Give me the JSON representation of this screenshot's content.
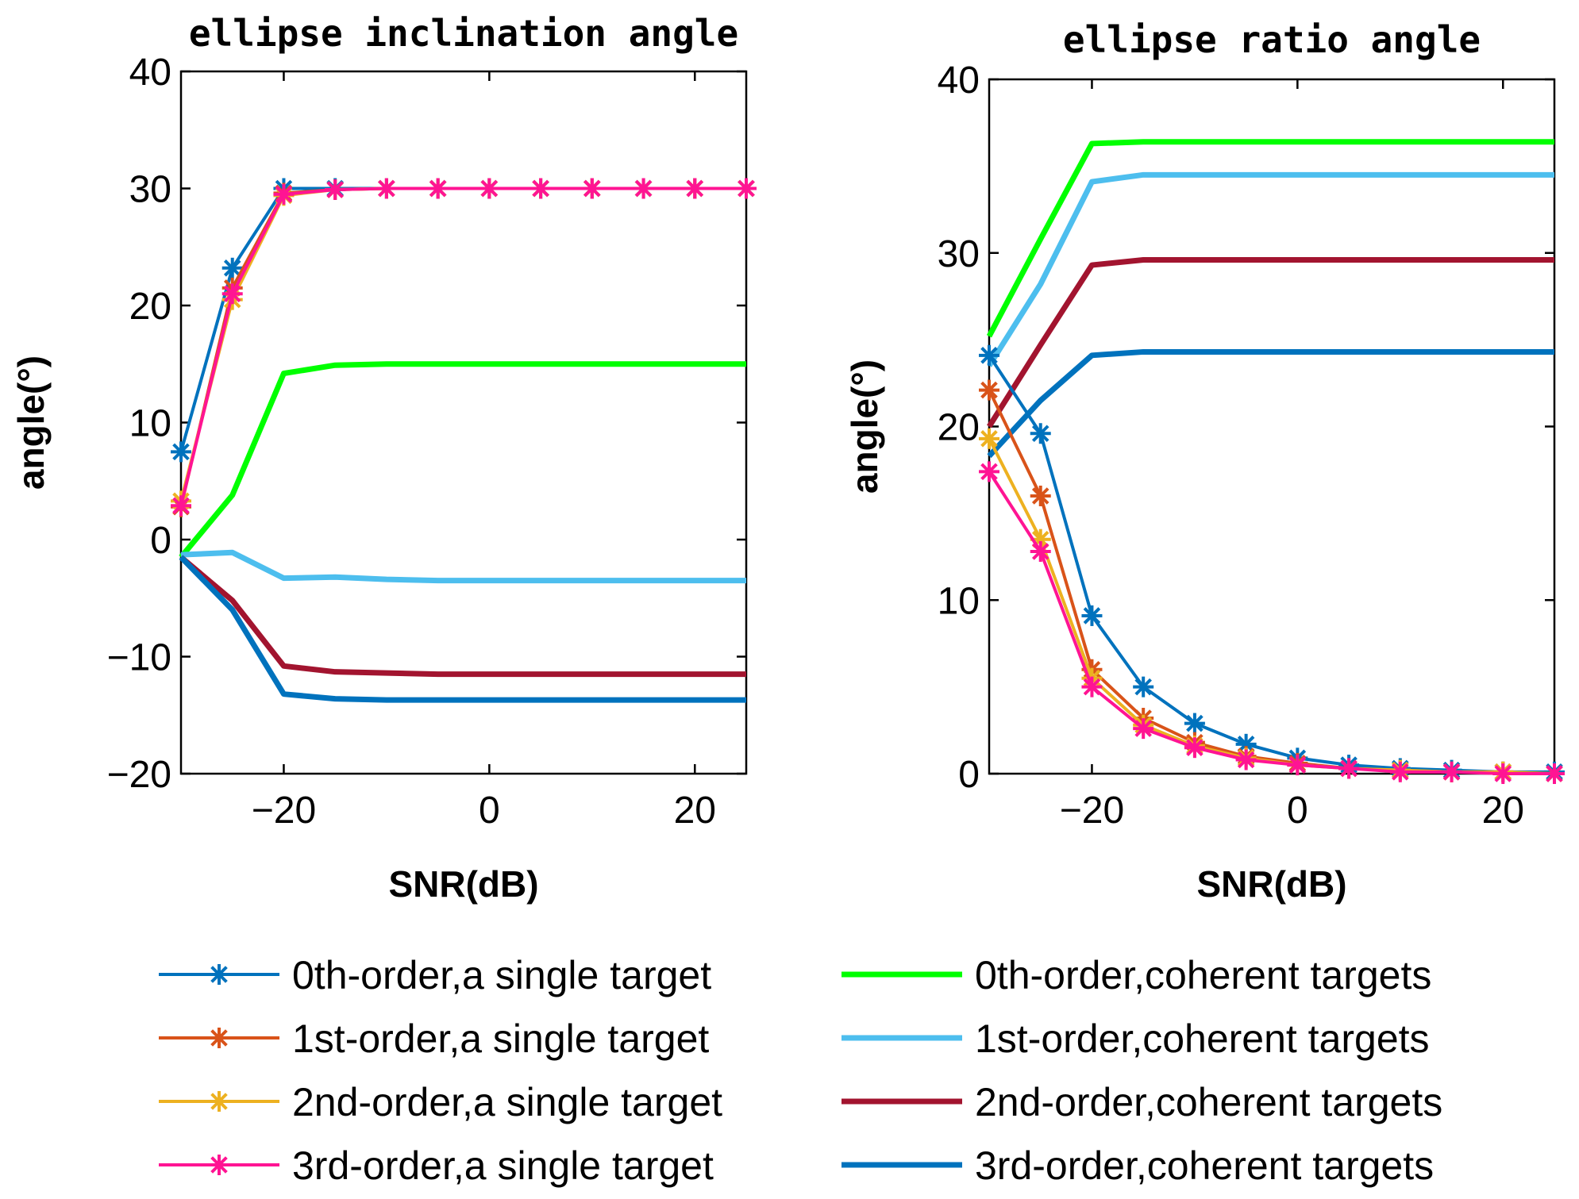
{
  "chart_data": [
    {
      "type": "line",
      "title": "ellipse inclination angle",
      "xlabel": "SNR(dB)",
      "ylabel": "angle(°)",
      "xlim": [
        -30,
        25
      ],
      "ylim": [
        -20,
        40
      ],
      "xticks": [
        -20,
        0,
        20
      ],
      "xtick_labels": [
        "−20",
        "0",
        "20"
      ],
      "yticks": [
        -20,
        -10,
        0,
        10,
        20,
        30,
        40
      ],
      "ytick_labels": [
        "−20",
        "−10",
        "0",
        "10",
        "20",
        "30",
        "40"
      ],
      "x": [
        -30,
        -25,
        -20,
        -15,
        -10,
        -5,
        0,
        5,
        10,
        15,
        20,
        25
      ],
      "series": [
        {
          "name": "0th-order,a single target",
          "values": [
            7.5,
            23.2,
            30,
            30,
            30,
            30,
            30,
            30,
            30,
            30,
            30,
            30
          ]
        },
        {
          "name": "1st-order,a single target",
          "values": [
            2.8,
            21.5,
            29.6,
            29.9,
            30,
            30,
            30,
            30,
            30,
            30,
            30,
            30
          ]
        },
        {
          "name": "2nd-order,a single target",
          "values": [
            3.3,
            20.5,
            29.4,
            29.9,
            30,
            30,
            30,
            30,
            30,
            30,
            30,
            30
          ]
        },
        {
          "name": "3rd-order,a single target",
          "values": [
            2.9,
            21,
            29.5,
            29.9,
            30,
            30,
            30,
            30,
            30,
            30,
            30,
            30
          ]
        },
        {
          "name": "0th-order,coherent targets",
          "values": [
            -1.5,
            3.8,
            14.2,
            14.9,
            15,
            15,
            15,
            15,
            15,
            15,
            15,
            15
          ]
        },
        {
          "name": "1st-order,coherent targets",
          "values": [
            -1.3,
            -1.1,
            -3.3,
            -3.2,
            -3.4,
            -3.5,
            -3.5,
            -3.5,
            -3.5,
            -3.5,
            -3.5,
            -3.5
          ]
        },
        {
          "name": "2nd-order,coherent targets",
          "values": [
            -1.5,
            -5.2,
            -10.8,
            -11.3,
            -11.4,
            -11.5,
            -11.5,
            -11.5,
            -11.5,
            -11.5,
            -11.5,
            -11.5
          ]
        },
        {
          "name": "3rd-order,coherent targets",
          "values": [
            -1.5,
            -6,
            -13.2,
            -13.6,
            -13.7,
            -13.7,
            -13.7,
            -13.7,
            -13.7,
            -13.7,
            -13.7,
            -13.7
          ]
        }
      ]
    },
    {
      "type": "line",
      "title": "ellipse ratio angle",
      "xlabel": "SNR(dB)",
      "ylabel": "angle(°)",
      "xlim": [
        -30,
        25
      ],
      "ylim": [
        0,
        40
      ],
      "xticks": [
        -20,
        0,
        20
      ],
      "xtick_labels": [
        "−20",
        "0",
        "20"
      ],
      "yticks": [
        0,
        10,
        20,
        30,
        40
      ],
      "ytick_labels": [
        "0",
        "10",
        "20",
        "30",
        "40"
      ],
      "x": [
        -30,
        -25,
        -20,
        -15,
        -10,
        -5,
        0,
        5,
        10,
        15,
        20,
        25
      ],
      "series": [
        {
          "name": "0th-order,a single target",
          "values": [
            24.1,
            19.6,
            9.1,
            5,
            2.9,
            1.7,
            0.9,
            0.5,
            0.3,
            0.2,
            0.1,
            0.1
          ]
        },
        {
          "name": "1st-order,a single target",
          "values": [
            22.1,
            16,
            6,
            3.2,
            1.8,
            1,
            0.6,
            0.3,
            0.2,
            0.1,
            0.1,
            0
          ]
        },
        {
          "name": "2nd-order,a single target",
          "values": [
            19.3,
            13.5,
            5.5,
            2.8,
            1.6,
            0.9,
            0.5,
            0.3,
            0.2,
            0.1,
            0.1,
            0
          ]
        },
        {
          "name": "3rd-order,a single target",
          "values": [
            17.4,
            12.8,
            5,
            2.6,
            1.5,
            0.8,
            0.5,
            0.3,
            0.1,
            0.1,
            0,
            0
          ]
        },
        {
          "name": "0th-order,coherent targets",
          "values": [
            25.2,
            30.8,
            36.3,
            36.4,
            36.4,
            36.4,
            36.4,
            36.4,
            36.4,
            36.4,
            36.4,
            36.4
          ]
        },
        {
          "name": "1st-order,coherent targets",
          "values": [
            23.5,
            28.2,
            34.1,
            34.5,
            34.5,
            34.5,
            34.5,
            34.5,
            34.5,
            34.5,
            34.5,
            34.5
          ]
        },
        {
          "name": "2nd-order,coherent targets",
          "values": [
            20,
            24.7,
            29.3,
            29.6,
            29.6,
            29.6,
            29.6,
            29.6,
            29.6,
            29.6,
            29.6,
            29.6
          ]
        },
        {
          "name": "3rd-order,coherent targets",
          "values": [
            18.3,
            21.5,
            24.1,
            24.3,
            24.3,
            24.3,
            24.3,
            24.3,
            24.3,
            24.3,
            24.3,
            24.3
          ]
        }
      ]
    }
  ],
  "legend": {
    "entries": [
      {
        "label": "0th-order,a single target",
        "color": "#0072BD",
        "marker": "asterisk"
      },
      {
        "label": "1st-order,a single target",
        "color": "#D95319",
        "marker": "asterisk"
      },
      {
        "label": "2nd-order,a single target",
        "color": "#EDB120",
        "marker": "asterisk"
      },
      {
        "label": "3rd-order,a single target",
        "color": "#FF1493",
        "marker": "asterisk"
      },
      {
        "label": "0th-order,coherent targets",
        "color": "#00FF00",
        "marker": "none"
      },
      {
        "label": "1st-order,coherent targets",
        "color": "#4DBEEE",
        "marker": "none"
      },
      {
        "label": "2nd-order,coherent targets",
        "color": "#A2142F",
        "marker": "none"
      },
      {
        "label": "3rd-order,coherent targets",
        "color": "#0072BD",
        "marker": "none"
      }
    ]
  }
}
